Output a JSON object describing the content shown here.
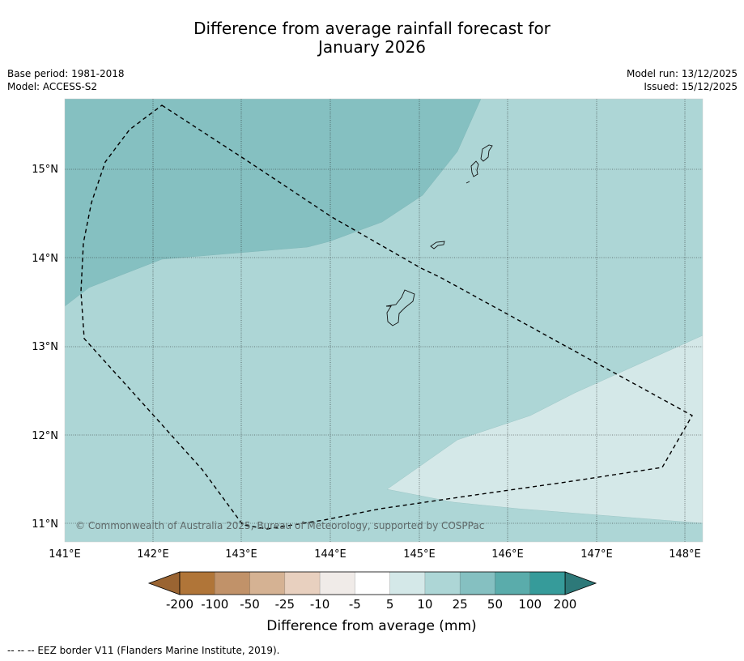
{
  "title": {
    "line1": "Difference from average rainfall forecast for",
    "line2": "January 2026"
  },
  "meta": {
    "base_period": "Base period: 1981-2018",
    "model": "Model: ACCESS-S2",
    "model_run": "Model run: 13/12/2025",
    "issued": "Issued: 15/12/2025"
  },
  "map": {
    "lat_labels": [
      "15°N",
      "14°N",
      "13°N",
      "12°N",
      "11°N"
    ],
    "lon_labels": [
      "141°E",
      "142°E",
      "143°E",
      "144°E",
      "145°E",
      "146°E",
      "147°E",
      "148°E"
    ],
    "copyright": "© Commonwealth of Australia 2025, Bureau of Meteorology, supported by COSPPac",
    "region_colors": {
      "band_25_50": "#85c0c1",
      "band_10_25": "#add6d6",
      "band_5_10": "#d4e8e8"
    }
  },
  "legend": {
    "title": "Difference from average (mm)",
    "tick_labels": [
      "-200",
      "-100",
      "-50",
      "-25",
      "-10",
      "-5",
      "5",
      "10",
      "25",
      "50",
      "100",
      "200"
    ],
    "colors": [
      "#b07538",
      "#c19269",
      "#d5b293",
      "#e8d0bf",
      "#f0ebe8",
      "#ffffff",
      "#d4e8e8",
      "#add6d6",
      "#85c0c1",
      "#5aacab",
      "#369b9a"
    ],
    "extend_low_color": "#9a6432",
    "extend_high_color": "#2d7979"
  },
  "footnote": "-- -- -- EEZ border V11 (Flanders Marine Institute, 2019)."
}
